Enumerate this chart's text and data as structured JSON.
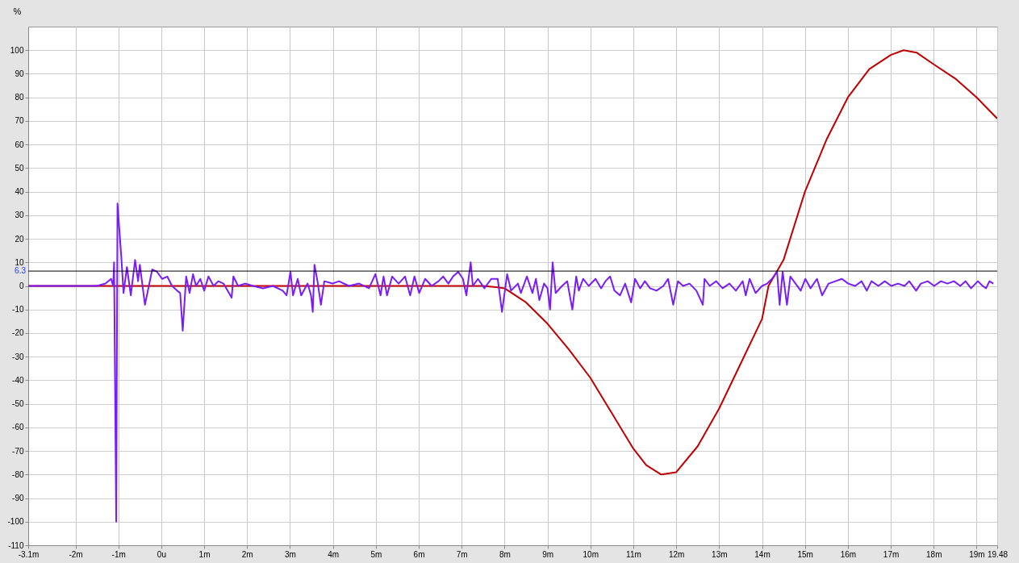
{
  "chart_data": {
    "type": "line",
    "ylabel": "%",
    "xlim": [
      -3.1,
      19.48
    ],
    "ylim": [
      -110,
      110
    ],
    "xticks": [
      {
        "value": -3.1,
        "label": "-3.1m"
      },
      {
        "value": -2,
        "label": "-2m"
      },
      {
        "value": -1,
        "label": "-1m"
      },
      {
        "value": 0,
        "label": "0u"
      },
      {
        "value": 1,
        "label": "1m"
      },
      {
        "value": 2,
        "label": "2m"
      },
      {
        "value": 3,
        "label": "3m"
      },
      {
        "value": 4,
        "label": "4m"
      },
      {
        "value": 5,
        "label": "5m"
      },
      {
        "value": 6,
        "label": "6m"
      },
      {
        "value": 7,
        "label": "7m"
      },
      {
        "value": 8,
        "label": "8m"
      },
      {
        "value": 9,
        "label": "9m"
      },
      {
        "value": 10,
        "label": "10m"
      },
      {
        "value": 11,
        "label": "11m"
      },
      {
        "value": 12,
        "label": "12m"
      },
      {
        "value": 13,
        "label": "13m"
      },
      {
        "value": 14,
        "label": "14m"
      },
      {
        "value": 15,
        "label": "15m"
      },
      {
        "value": 16,
        "label": "16m"
      },
      {
        "value": 17,
        "label": "17m"
      },
      {
        "value": 18,
        "label": "18m"
      },
      {
        "value": 19,
        "label": "19m"
      },
      {
        "value": 19.48,
        "label": "19.48"
      }
    ],
    "yticks": [
      -110,
      -100,
      -90,
      -80,
      -70,
      -60,
      -50,
      -40,
      -30,
      -20,
      -10,
      0,
      10,
      20,
      30,
      40,
      50,
      60,
      70,
      80,
      90,
      100
    ],
    "grid": true,
    "line_style": "solid",
    "ref_lines": [
      {
        "axis": "y",
        "value": 6.3,
        "label": "6.3",
        "color": "#000000"
      }
    ],
    "series": [
      {
        "color": "#c00000",
        "x": [
          -3.1,
          7.5,
          7.8,
          8,
          8.5,
          9,
          9.5,
          10,
          10.5,
          11,
          11.3,
          11.65,
          12,
          12.5,
          13,
          13.5,
          14,
          14.15,
          14.5,
          15,
          15.5,
          16,
          16.5,
          17,
          17.3,
          17.6,
          18,
          18.5,
          19,
          19.48
        ],
        "values": [
          0,
          0,
          -0.5,
          -1,
          -7,
          -16,
          -27,
          -39,
          -54,
          -69,
          -76,
          -80,
          -79,
          -68,
          -52,
          -33,
          -14,
          0,
          11,
          40,
          62,
          80,
          92,
          98,
          100,
          99,
          94,
          88,
          80,
          71
        ]
      },
      {
        "color": "#7a1cf5",
        "x": [
          -3.1,
          -1.5,
          -1.3,
          -1.17,
          -1.12,
          -1.1,
          -1.05,
          -1.02,
          -0.93,
          -0.88,
          -0.8,
          -0.71,
          -0.61,
          -0.54,
          -0.5,
          -0.38,
          -0.21,
          -0.1,
          0.02,
          0.14,
          0.25,
          0.37,
          0.44,
          0.5,
          0.58,
          0.66,
          0.74,
          0.81,
          0.91,
          1.0,
          1.1,
          1.22,
          1.33,
          1.45,
          1.64,
          1.68,
          1.79,
          1.95,
          2.14,
          2.37,
          2.6,
          2.83,
          2.92,
          3.01,
          3.07,
          3.18,
          3.26,
          3.41,
          3.49,
          3.53,
          3.57,
          3.64,
          3.72,
          3.8,
          3.99,
          4.14,
          4.37,
          4.61,
          4.84,
          4.99,
          5.11,
          5.18,
          5.26,
          5.38,
          5.53,
          5.68,
          5.8,
          5.9,
          6.01,
          6.15,
          6.3,
          6.46,
          6.57,
          6.69,
          6.8,
          6.92,
          7.03,
          7.11,
          7.21,
          7.26,
          7.38,
          7.53,
          7.69,
          7.84,
          7.94,
          8.06,
          8.15,
          8.31,
          8.38,
          8.52,
          8.65,
          8.73,
          8.81,
          8.92,
          9.0,
          9.06,
          9.12,
          9.19,
          9.34,
          9.46,
          9.58,
          9.67,
          9.73,
          9.83,
          9.96,
          10.12,
          10.25,
          10.35,
          10.46,
          10.56,
          10.69,
          10.81,
          10.95,
          11.04,
          11.16,
          11.27,
          11.39,
          11.54,
          11.7,
          11.81,
          11.93,
          12.04,
          12.16,
          12.31,
          12.47,
          12.62,
          12.66,
          12.78,
          12.93,
          13.08,
          13.24,
          13.39,
          13.55,
          13.62,
          13.71,
          13.85,
          14.0,
          14.12,
          14.23,
          14.35,
          14.41,
          14.48,
          14.58,
          14.66,
          14.78,
          14.9,
          15.01,
          15.13,
          15.28,
          15.4,
          15.55,
          15.71,
          15.86,
          16.01,
          16.17,
          16.32,
          16.44,
          16.55,
          16.71,
          16.86,
          17.01,
          17.17,
          17.32,
          17.43,
          17.59,
          17.7,
          17.86,
          18.01,
          18.17,
          18.32,
          18.47,
          18.62,
          18.74,
          18.87,
          19.03,
          19.14,
          19.22,
          19.3,
          19.39
        ],
        "values": [
          0,
          0,
          1,
          3,
          0,
          10,
          -100,
          35,
          12,
          -3,
          8,
          -4,
          11,
          2,
          9,
          -8,
          7,
          6,
          3,
          4,
          0,
          -2,
          -3,
          -19,
          4,
          -3,
          5,
          0,
          3,
          -2,
          4,
          0,
          2,
          1,
          -5,
          4,
          0,
          1,
          0,
          -1,
          0,
          -2,
          -4,
          6,
          -4,
          3,
          -4,
          1,
          -4,
          -11,
          9,
          2,
          -8,
          2,
          1,
          2,
          0,
          1,
          -1,
          5,
          -4,
          4,
          -4,
          4,
          1,
          4,
          -4,
          4,
          -3,
          3,
          0,
          2,
          4,
          1,
          4,
          6,
          3,
          -4,
          10,
          0,
          3,
          -1,
          3,
          3,
          -11,
          5,
          -2,
          1,
          -3,
          4,
          -3,
          3,
          -6,
          1,
          -1,
          -10,
          10,
          -3,
          0,
          2,
          -10,
          4,
          -2,
          3,
          0,
          3,
          -1,
          2,
          4,
          -2,
          -4,
          1,
          -7,
          3,
          -1,
          2,
          -1,
          -2,
          0,
          3,
          -8,
          2,
          0,
          1,
          -2,
          -8,
          3,
          0,
          2,
          -1,
          1,
          -2,
          2,
          -4,
          3,
          -3,
          0,
          1,
          3,
          6,
          -8,
          6,
          -8,
          4,
          1,
          -2,
          3,
          -1,
          3,
          -4,
          1,
          2,
          3,
          1,
          0,
          2,
          -2,
          2,
          0,
          2,
          0,
          1,
          0,
          2,
          -2,
          1,
          2,
          0,
          2,
          1,
          2,
          0,
          2,
          -1,
          2,
          0,
          -1,
          2,
          1
        ]
      }
    ]
  }
}
